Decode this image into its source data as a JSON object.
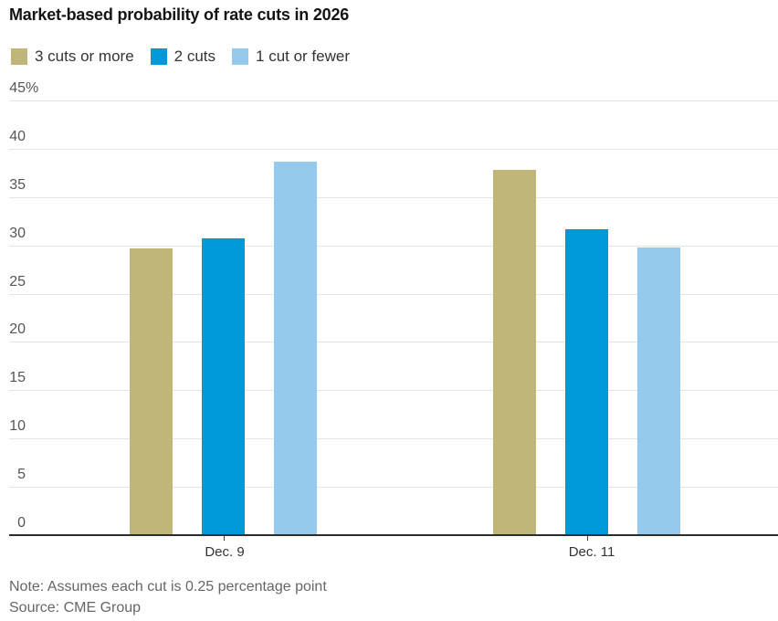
{
  "chart_data": {
    "type": "bar",
    "title": "Market-based probability of rate cuts in 2026",
    "categories": [
      "Dec. 9",
      "Dec. 11"
    ],
    "series": [
      {
        "name": "3 cuts or more",
        "color": "#c0b67a",
        "values": [
          29.8,
          37.9
        ]
      },
      {
        "name": "2 cuts",
        "color": "#0099d8",
        "values": [
          30.8,
          31.8
        ]
      },
      {
        "name": "1 cut or fewer",
        "color": "#96caec",
        "values": [
          38.8,
          29.9
        ]
      }
    ],
    "xlabel": "",
    "ylabel": "",
    "ylim": [
      0,
      45
    ],
    "yticks": [
      0,
      5,
      10,
      15,
      20,
      25,
      30,
      35,
      40,
      45
    ],
    "ytick_top_suffix": "%",
    "grid": true,
    "legend_position": "top-left",
    "note": "Note: Assumes each cut is 0.25 percentage point",
    "source": "Source: CME Group"
  },
  "colors": {
    "grid": "#e4e4e4",
    "baseline": "#2d2d2d",
    "axis_text": "#555555",
    "footer_text": "#666666",
    "title_text": "#141414"
  }
}
